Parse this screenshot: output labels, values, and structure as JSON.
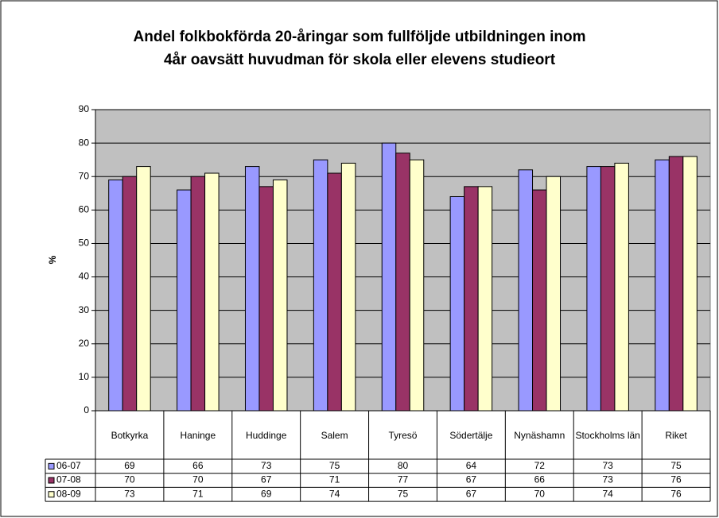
{
  "chart_data": {
    "type": "bar",
    "title": [
      "Andel folkbokförda 20-åringar som fullföljde utbildningen inom",
      "4år oavsätt huvudman för skola eller elevens studieort"
    ],
    "y_label": "%",
    "categories": [
      "Botkyrka",
      "Haninge",
      "Huddinge",
      "Salem",
      "Tyresö",
      "Södertälje",
      "Nynäshamn",
      "Stockholms län",
      "Riket"
    ],
    "series": [
      {
        "name": "06-07",
        "color": "#9999ff",
        "values": [
          69,
          66,
          73,
          75,
          80,
          64,
          72,
          73,
          75
        ]
      },
      {
        "name": "07-08",
        "color": "#993366",
        "values": [
          70,
          70,
          67,
          71,
          77,
          67,
          66,
          73,
          76
        ]
      },
      {
        "name": "08-09",
        "color": "#ffffcc",
        "values": [
          73,
          71,
          69,
          74,
          75,
          67,
          70,
          74,
          76
        ]
      }
    ],
    "ylim": [
      0,
      90
    ],
    "yticks": [
      0,
      10,
      20,
      30,
      40,
      50,
      60,
      70,
      80,
      90
    ],
    "grid": true,
    "plot_background": "#c0c0c0"
  }
}
